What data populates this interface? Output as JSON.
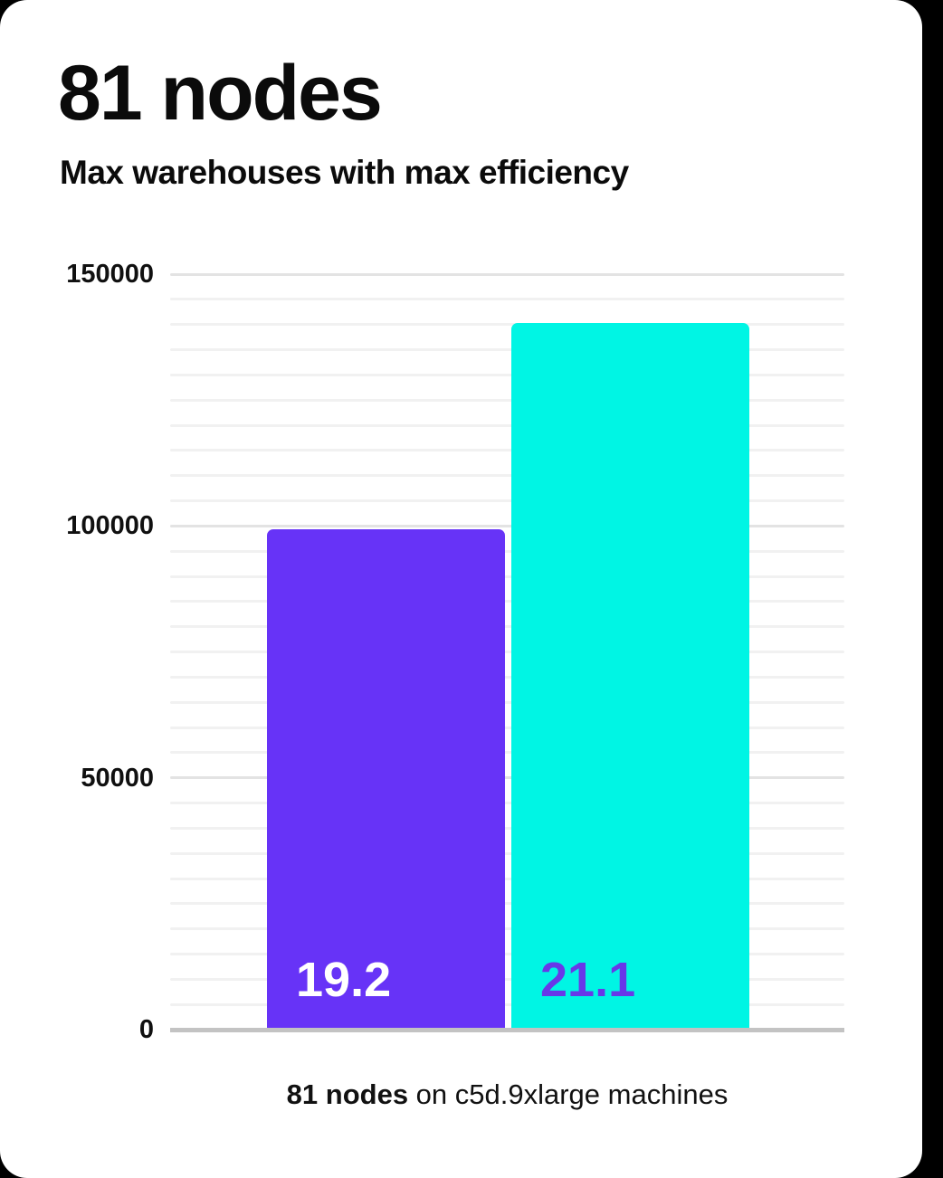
{
  "page": {
    "background_color": "#000000",
    "card_color": "#ffffff"
  },
  "header": {
    "title": "81 nodes",
    "subtitle": "Max warehouses with max efficiency"
  },
  "chart_data": {
    "type": "bar",
    "title": "81 nodes",
    "subtitle": "Max warehouses with max efficiency",
    "xlabel": "",
    "ylabel": "",
    "ylim": [
      0,
      150000
    ],
    "grid": "horizontal",
    "legend": false,
    "minor_grid_step": 5000,
    "major_grid_step": 50000,
    "yticks": [
      {
        "value": 0,
        "label": "0"
      },
      {
        "value": 50000,
        "label": "50000"
      },
      {
        "value": 100000,
        "label": "100000"
      },
      {
        "value": 150000,
        "label": "150000"
      }
    ],
    "bars": [
      {
        "label": "19.2",
        "value": 99000,
        "color": "#6733f7",
        "label_color": "#ffffff"
      },
      {
        "label": "21.1",
        "value": 140000,
        "color": "#00f5e4",
        "label_color": "#6838e8"
      }
    ],
    "caption": {
      "bold": "81 nodes",
      "rest": " on c5d.9xlarge machines"
    }
  },
  "colors": {
    "bar_purple": "#6733f7",
    "bar_cyan": "#00f5e4",
    "gridline_minor": "#f1f1f1",
    "gridline_major": "#e3e3e3",
    "axis_line": "#c3c3c3",
    "text": "#0b0b0b"
  }
}
